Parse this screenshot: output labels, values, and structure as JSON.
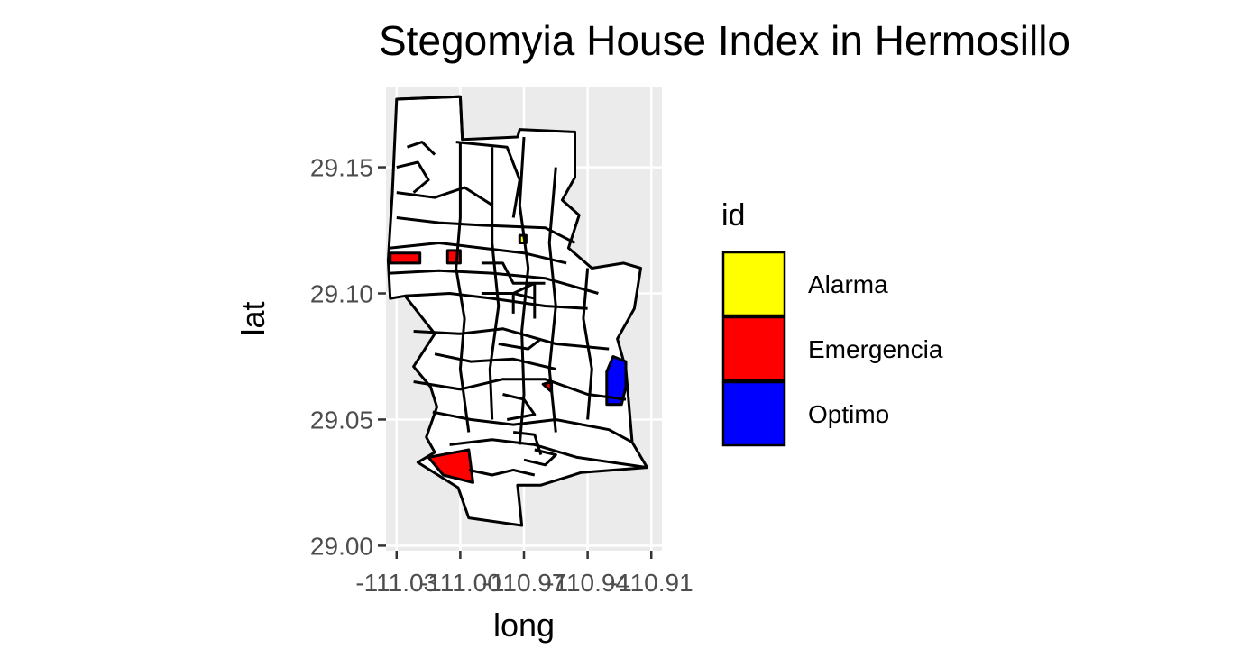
{
  "title": "Stegomyia House Index in Hermosillo",
  "chart_data": {
    "type": "choropleth",
    "title": "Stegomyia House Index in Hermosillo",
    "xlabel": "long",
    "ylabel": "lat",
    "xlim": [
      -111.035,
      -110.905
    ],
    "ylim": [
      28.998,
      29.182
    ],
    "x_ticks": [
      "-111.03",
      "-111.00",
      "-110.97",
      "-110.94",
      "-110.91"
    ],
    "x_tick_values": [
      -111.03,
      -111.0,
      -110.97,
      -110.94,
      -110.91
    ],
    "y_ticks": [
      "29.00",
      "29.05",
      "29.10",
      "29.15"
    ],
    "y_tick_values": [
      29.0,
      29.05,
      29.1,
      29.15
    ],
    "grid": true,
    "legend_position": "right",
    "legend_title": "id",
    "legend": [
      {
        "label": "Alarma",
        "color": "#ffff00"
      },
      {
        "label": "Emergencia",
        "color": "#ff0000"
      },
      {
        "label": "Optimo",
        "color": "#0000ff"
      }
    ],
    "regions": [
      {
        "id": "white",
        "color": "#ffffff",
        "points": [
          [
            -111.03,
            29.177
          ],
          [
            -111.0,
            29.178
          ],
          [
            -110.999,
            29.161
          ],
          [
            -110.973,
            29.162
          ],
          [
            -110.972,
            29.165
          ],
          [
            -110.946,
            29.164
          ],
          [
            -110.946,
            29.146
          ],
          [
            -110.952,
            29.137
          ],
          [
            -110.944,
            29.131
          ],
          [
            -110.949,
            29.118
          ],
          [
            -110.938,
            29.11
          ],
          [
            -110.923,
            29.112
          ],
          [
            -110.915,
            29.11
          ],
          [
            -110.918,
            29.094
          ],
          [
            -110.926,
            29.082
          ],
          [
            -110.922,
            29.07
          ],
          [
            -110.919,
            29.041
          ],
          [
            -110.912,
            29.031
          ],
          [
            -110.943,
            29.029
          ],
          [
            -110.962,
            29.024
          ],
          [
            -110.973,
            29.024
          ],
          [
            -110.971,
            29.008
          ],
          [
            -110.996,
            29.011
          ],
          [
            -111.001,
            29.023
          ],
          [
            -111.02,
            29.033
          ],
          [
            -111.012,
            29.037
          ],
          [
            -111.016,
            29.043
          ],
          [
            -111.011,
            29.055
          ],
          [
            -111.014,
            29.063
          ],
          [
            -111.022,
            29.071
          ],
          [
            -111.012,
            29.084
          ],
          [
            -111.026,
            29.099
          ],
          [
            -111.033,
            29.098
          ],
          [
            -111.034,
            29.113
          ],
          [
            -111.032,
            29.14
          ]
        ]
      },
      {
        "id": "emergencia-west",
        "color": "#ff0000",
        "points": [
          [
            -111.033,
            29.116
          ],
          [
            -111.019,
            29.116
          ],
          [
            -111.019,
            29.112
          ],
          [
            -111.033,
            29.112
          ]
        ]
      },
      {
        "id": "emergencia-mid",
        "color": "#ff0000",
        "points": [
          [
            -111.006,
            29.117
          ],
          [
            -111.0,
            29.117
          ],
          [
            -111.0,
            29.112
          ],
          [
            -111.006,
            29.112
          ]
        ]
      },
      {
        "id": "alarma-center",
        "color": "#ffff00",
        "points": [
          [
            -110.972,
            29.123
          ],
          [
            -110.969,
            29.123
          ],
          [
            -110.969,
            29.12
          ],
          [
            -110.972,
            29.12
          ]
        ]
      },
      {
        "id": "emergencia-south",
        "color": "#ff0000",
        "points": [
          [
            -111.015,
            29.035
          ],
          [
            -110.996,
            29.038
          ],
          [
            -110.994,
            29.025
          ],
          [
            -111.008,
            29.028
          ]
        ]
      },
      {
        "id": "emergencia-small",
        "color": "#ff0000",
        "points": [
          [
            -110.961,
            29.064
          ],
          [
            -110.957,
            29.065
          ],
          [
            -110.957,
            29.061
          ]
        ]
      },
      {
        "id": "optimo-east",
        "color": "#0000ff",
        "points": [
          [
            -110.928,
            29.075
          ],
          [
            -110.922,
            29.073
          ],
          [
            -110.922,
            29.063
          ],
          [
            -110.924,
            29.056
          ],
          [
            -110.931,
            29.056
          ],
          [
            -110.931,
            29.069
          ]
        ]
      }
    ],
    "outlines": [
      [
        [
          -111.03,
          29.177
        ],
        [
          -111.0,
          29.178
        ],
        [
          -110.999,
          29.161
        ]
      ],
      [
        [
          -111.002,
          29.16
        ],
        [
          -110.978,
          29.158
        ],
        [
          -110.972,
          29.145
        ],
        [
          -110.975,
          29.13
        ]
      ],
      [
        [
          -111.03,
          29.14
        ],
        [
          -111.012,
          29.138
        ],
        [
          -110.998,
          29.142
        ],
        [
          -110.985,
          29.135
        ]
      ],
      [
        [
          -111.03,
          29.13
        ],
        [
          -111.01,
          29.128
        ],
        [
          -110.99,
          29.127
        ],
        [
          -110.96,
          29.126
        ],
        [
          -110.946,
          29.12
        ]
      ],
      [
        [
          -111.033,
          29.118
        ],
        [
          -111.01,
          29.12
        ],
        [
          -110.99,
          29.118
        ],
        [
          -110.97,
          29.116
        ],
        [
          -110.95,
          29.112
        ]
      ],
      [
        [
          -111.033,
          29.108
        ],
        [
          -111.01,
          29.109
        ],
        [
          -110.985,
          29.108
        ],
        [
          -110.96,
          29.106
        ],
        [
          -110.935,
          29.1
        ]
      ],
      [
        [
          -111.026,
          29.099
        ],
        [
          -111.005,
          29.1
        ],
        [
          -110.985,
          29.098
        ],
        [
          -110.96,
          29.095
        ],
        [
          -110.94,
          29.094
        ]
      ],
      [
        [
          -111.022,
          29.085
        ],
        [
          -111.0,
          29.084
        ],
        [
          -110.98,
          29.086
        ],
        [
          -110.955,
          29.08
        ],
        [
          -110.93,
          29.078
        ]
      ],
      [
        [
          -111.012,
          29.076
        ],
        [
          -110.995,
          29.073
        ],
        [
          -110.975,
          29.074
        ],
        [
          -110.955,
          29.07
        ]
      ],
      [
        [
          -111.022,
          29.065
        ],
        [
          -111.0,
          29.062
        ],
        [
          -110.98,
          29.066
        ],
        [
          -110.96,
          29.066
        ],
        [
          -110.94,
          29.06
        ],
        [
          -110.922,
          29.058
        ]
      ],
      [
        [
          -111.013,
          29.053
        ],
        [
          -110.995,
          29.05
        ],
        [
          -110.975,
          29.048
        ],
        [
          -110.955,
          29.05
        ],
        [
          -110.93,
          29.046
        ],
        [
          -110.919,
          29.041
        ]
      ],
      [
        [
          -111.005,
          29.04
        ],
        [
          -110.985,
          29.042
        ],
        [
          -110.965,
          29.04
        ],
        [
          -110.945,
          29.035
        ],
        [
          -110.912,
          29.031
        ]
      ],
      [
        [
          -110.996,
          29.03
        ],
        [
          -110.985,
          29.028
        ],
        [
          -110.975,
          29.03
        ],
        [
          -110.965,
          29.028
        ]
      ],
      [
        [
          -111.0,
          29.16
        ],
        [
          -111.0,
          29.13
        ],
        [
          -111.002,
          29.11
        ],
        [
          -110.998,
          29.09
        ],
        [
          -111.0,
          29.07
        ],
        [
          -110.996,
          29.045
        ]
      ],
      [
        [
          -110.985,
          29.158
        ],
        [
          -110.985,
          29.12
        ],
        [
          -110.982,
          29.095
        ],
        [
          -110.986,
          29.07
        ],
        [
          -110.985,
          29.05
        ]
      ],
      [
        [
          -110.97,
          29.162
        ],
        [
          -110.972,
          29.135
        ],
        [
          -110.968,
          29.11
        ],
        [
          -110.971,
          29.085
        ],
        [
          -110.97,
          29.06
        ],
        [
          -110.972,
          29.04
        ]
      ],
      [
        [
          -110.955,
          29.15
        ],
        [
          -110.958,
          29.12
        ],
        [
          -110.955,
          29.095
        ],
        [
          -110.958,
          29.07
        ],
        [
          -110.955,
          29.045
        ]
      ],
      [
        [
          -110.94,
          29.11
        ],
        [
          -110.942,
          29.09
        ],
        [
          -110.938,
          29.07
        ],
        [
          -110.94,
          29.05
        ]
      ],
      [
        [
          -111.03,
          29.15
        ],
        [
          -111.02,
          29.152
        ],
        [
          -111.015,
          29.145
        ],
        [
          -111.022,
          29.14
        ]
      ],
      [
        [
          -111.025,
          29.158
        ],
        [
          -111.018,
          29.16
        ],
        [
          -111.012,
          29.155
        ]
      ],
      [
        [
          -110.99,
          29.112
        ],
        [
          -110.98,
          29.112
        ],
        [
          -110.975,
          29.104
        ],
        [
          -110.96,
          29.104
        ]
      ],
      [
        [
          -110.99,
          29.1
        ],
        [
          -110.975,
          29.1
        ],
        [
          -110.965,
          29.098
        ]
      ],
      [
        [
          -110.975,
          29.092
        ],
        [
          -110.975,
          29.1
        ],
        [
          -110.965,
          29.104
        ],
        [
          -110.965,
          29.09
        ]
      ],
      [
        [
          -110.982,
          29.08
        ],
        [
          -110.968,
          29.078
        ],
        [
          -110.962,
          29.082
        ]
      ],
      [
        [
          -110.98,
          29.06
        ],
        [
          -110.97,
          29.058
        ],
        [
          -110.965,
          29.052
        ],
        [
          -110.978,
          29.05
        ]
      ],
      [
        [
          -110.975,
          29.045
        ],
        [
          -110.965,
          29.044
        ],
        [
          -110.962,
          29.036
        ]
      ],
      [
        [
          -110.97,
          29.034
        ],
        [
          -110.96,
          29.032
        ],
        [
          -110.955,
          29.036
        ],
        [
          -110.965,
          29.038
        ]
      ]
    ]
  }
}
